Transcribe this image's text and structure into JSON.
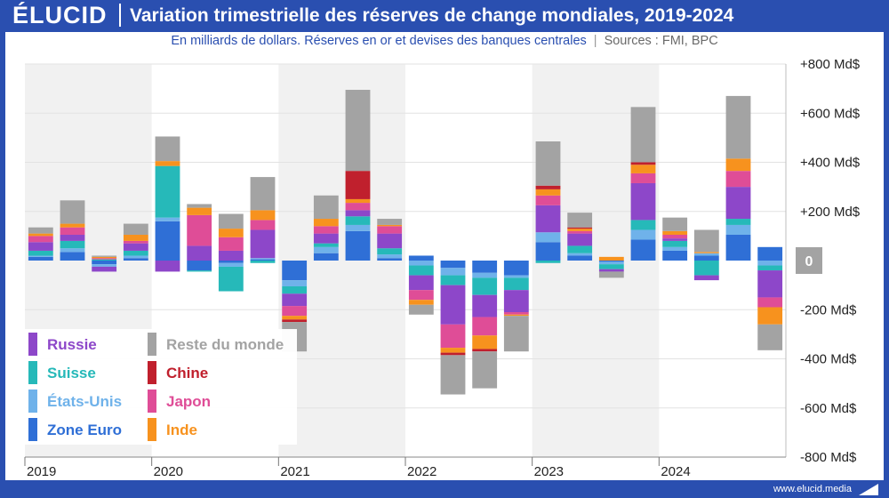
{
  "header": {
    "logo": "ÉLUCID",
    "title": "Variation trimestrielle des réserves de change mondiales, 2019-2024",
    "subtitle": "En milliards de dollars. Réserves en or et devises des banques centrales",
    "sources": "Sources : FMI, BPC"
  },
  "footer": {
    "site": "www.elucid.media"
  },
  "colors": {
    "brand": "#2a4fb0",
    "Zone Euro": "#2f6fd6",
    "États-Unis": "#6fb2ea",
    "Suisse": "#26b9b9",
    "Russie": "#8d47c9",
    "Japon": "#df4d97",
    "Inde": "#f7921e",
    "Chine": "#c0202d",
    "Reste du monde": "#a3a3a3"
  },
  "chart_data": {
    "type": "bar",
    "stacked": true,
    "title": "Variation trimestrielle des réserves de change mondiales, 2019-2024",
    "ylabel": "Md$",
    "ylim": [
      -800,
      800
    ],
    "yticks": [
      {
        "value": 800,
        "label": "+800 Md$"
      },
      {
        "value": 600,
        "label": "+600 Md$"
      },
      {
        "value": 400,
        "label": "+400 Md$"
      },
      {
        "value": 200,
        "label": "+200 Md$"
      },
      {
        "value": 0,
        "label": "0"
      },
      {
        "value": -200,
        "label": "-200 Md$"
      },
      {
        "value": -400,
        "label": "-400 Md$"
      },
      {
        "value": -600,
        "label": "-600 Md$"
      },
      {
        "value": -800,
        "label": "-800 Md$"
      }
    ],
    "years": [
      "2019",
      "2020",
      "2021",
      "2022",
      "2023",
      "2024"
    ],
    "categories": [
      "2019 T1",
      "2019 T2",
      "2019 T3",
      "2019 T4",
      "2020 T1",
      "2020 T2",
      "2020 T3",
      "2020 T4",
      "2021 T1",
      "2021 T2",
      "2021 T3",
      "2021 T4",
      "2022 T1",
      "2022 T2",
      "2022 T3",
      "2022 T4",
      "2023 T1",
      "2023 T2",
      "2023 T3",
      "2023 T4",
      "2024 T1",
      "2024 T2",
      "2024 T3",
      "2024 T4"
    ],
    "series": [
      {
        "name": "Zone Euro",
        "values": [
          15,
          35,
          -15,
          10,
          160,
          -40,
          -10,
          5,
          -80,
          30,
          120,
          10,
          20,
          -30,
          -50,
          -60,
          75,
          20,
          -5,
          85,
          40,
          20,
          105,
          55
        ]
      },
      {
        "name": "États-Unis",
        "values": [
          5,
          15,
          -10,
          10,
          15,
          0,
          -15,
          5,
          -25,
          25,
          25,
          15,
          -20,
          -30,
          -20,
          -10,
          40,
          10,
          -10,
          40,
          15,
          10,
          40,
          -20
        ]
      },
      {
        "name": "Suisse",
        "values": [
          20,
          30,
          5,
          20,
          210,
          -5,
          -100,
          -10,
          -30,
          15,
          35,
          25,
          -40,
          -40,
          -70,
          -50,
          -10,
          30,
          -20,
          40,
          25,
          -60,
          25,
          -20
        ]
      },
      {
        "name": "Russie",
        "values": [
          35,
          25,
          -20,
          30,
          -45,
          60,
          40,
          115,
          -50,
          40,
          25,
          60,
          -60,
          -160,
          -90,
          -90,
          110,
          50,
          -10,
          150,
          10,
          -20,
          130,
          -110
        ]
      },
      {
        "name": "Japon",
        "values": [
          25,
          30,
          5,
          10,
          0,
          125,
          55,
          40,
          -40,
          30,
          30,
          30,
          -40,
          -95,
          -75,
          -10,
          40,
          10,
          0,
          40,
          15,
          0,
          65,
          -40
        ]
      },
      {
        "name": "Inde",
        "values": [
          10,
          15,
          5,
          25,
          20,
          30,
          35,
          40,
          -15,
          30,
          15,
          5,
          -20,
          -20,
          -55,
          -5,
          25,
          10,
          15,
          35,
          15,
          5,
          50,
          -70
        ]
      },
      {
        "name": "Chine",
        "values": [
          0,
          0,
          0,
          0,
          0,
          0,
          0,
          0,
          -10,
          0,
          115,
          0,
          0,
          -10,
          -10,
          0,
          15,
          5,
          0,
          10,
          0,
          0,
          0,
          0
        ]
      },
      {
        "name": "Reste du monde",
        "values": [
          25,
          95,
          5,
          45,
          100,
          15,
          60,
          135,
          -120,
          95,
          330,
          25,
          -40,
          -160,
          -150,
          -145,
          180,
          60,
          -25,
          225,
          55,
          90,
          255,
          -105
        ]
      }
    ],
    "legend": [
      {
        "name": "Russie",
        "col": 0
      },
      {
        "name": "Reste du monde",
        "col": 1
      },
      {
        "name": "Suisse",
        "col": 0
      },
      {
        "name": "Chine",
        "col": 1
      },
      {
        "name": "États-Unis",
        "col": 0
      },
      {
        "name": "Japon",
        "col": 1
      },
      {
        "name": "Zone Euro",
        "col": 0
      },
      {
        "name": "Inde",
        "col": 1
      }
    ],
    "legend_position": "bottom-left"
  }
}
